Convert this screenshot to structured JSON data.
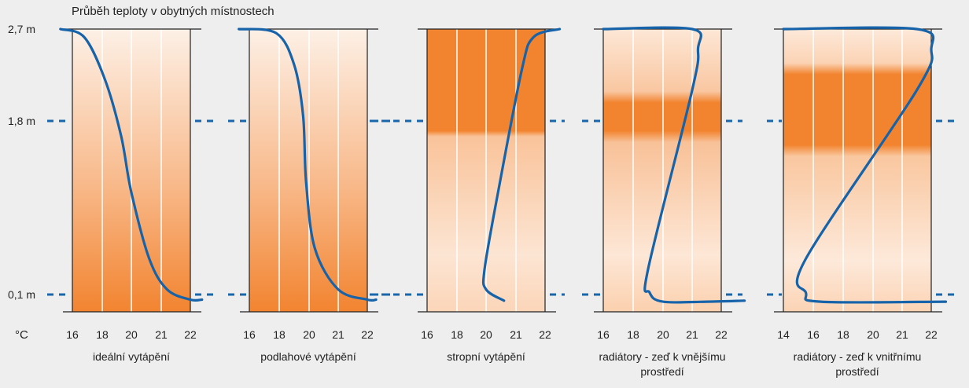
{
  "chart_data": {
    "type": "line",
    "title": "Průběh teploty v obytných místnostech",
    "unit_label": "°C",
    "height_levels": [
      {
        "label": "2,7 m",
        "value": 2.7
      },
      {
        "label": "1,8 m",
        "value": 1.8
      },
      {
        "label": "0,1 m",
        "value": 0.1
      }
    ],
    "panels": [
      {
        "name": "ideální vytápění",
        "name_lines": [
          "ideální vytápění"
        ],
        "x_ticks": [
          "16",
          "18",
          "20",
          "21",
          "22"
        ],
        "gradient": "vertical",
        "points": [
          [
            15.2,
            2.7
          ],
          [
            16.8,
            2.62
          ],
          [
            18.2,
            2.2
          ],
          [
            19.3,
            1.65
          ],
          [
            20.0,
            1.1
          ],
          [
            20.6,
            0.45
          ],
          [
            21.2,
            0.15
          ],
          [
            22.0,
            0.05
          ],
          [
            22.4,
            0.05
          ]
        ]
      },
      {
        "name": "podlahové vytápění",
        "name_lines": [
          "podlahové vytápění"
        ],
        "x_ticks": [
          "16",
          "18",
          "20",
          "21",
          "22"
        ],
        "gradient": "vertical",
        "points": [
          [
            15.3,
            2.7
          ],
          [
            17.8,
            2.66
          ],
          [
            19.0,
            2.35
          ],
          [
            19.6,
            1.85
          ],
          [
            19.8,
            1.2
          ],
          [
            20.2,
            0.55
          ],
          [
            21.0,
            0.15
          ],
          [
            22.0,
            0.05
          ],
          [
            22.3,
            0.05
          ]
        ]
      },
      {
        "name": "stropní vytápění",
        "name_lines": [
          "stropní vytápění"
        ],
        "x_ticks": [
          "16",
          "18",
          "20",
          "21",
          "22"
        ],
        "gradient": "ceiling",
        "points": [
          [
            20.6,
            0.04
          ],
          [
            20.0,
            0.15
          ],
          [
            19.9,
            0.35
          ],
          [
            20.4,
            1.1
          ],
          [
            21.2,
            2.3
          ],
          [
            21.6,
            2.62
          ],
          [
            22.5,
            2.7
          ]
        ]
      },
      {
        "name": "radiátory - zeď k vnějšímu prostředí",
        "name_lines": [
          "radiátory - zeď k vnějšímu",
          "prostředí"
        ],
        "x_ticks": [
          "16",
          "18",
          "20",
          "21",
          "22"
        ],
        "gradient": "outer",
        "points": [
          [
            16.0,
            2.7
          ],
          [
            21.0,
            2.7
          ],
          [
            21.2,
            2.5
          ],
          [
            21.0,
            2.1
          ],
          [
            19.0,
            0.35
          ],
          [
            19.1,
            0.12
          ],
          [
            20.0,
            0.03
          ],
          [
            21.5,
            0.03
          ],
          [
            22.8,
            0.04
          ]
        ]
      },
      {
        "name": "radiátory - zeď k vnitřnímu prostředí",
        "name_lines": [
          "radiátory - zeď k vnitřnímu",
          "prostředí"
        ],
        "x_ticks": [
          "14",
          "16",
          "18",
          "20",
          "21",
          "22"
        ],
        "gradient": "inner",
        "points": [
          [
            14.0,
            2.7
          ],
          [
            21.5,
            2.7
          ],
          [
            22.0,
            2.5
          ],
          [
            21.5,
            2.1
          ],
          [
            15.5,
            0.45
          ],
          [
            15.5,
            0.12
          ],
          [
            16.5,
            0.03
          ],
          [
            22.5,
            0.03
          ]
        ]
      }
    ]
  },
  "colors": {
    "orange": "#f28430",
    "pale": "#fdf0e6",
    "curve": "#1663a9",
    "dash": "#1a66ad",
    "frame": "#222222"
  }
}
